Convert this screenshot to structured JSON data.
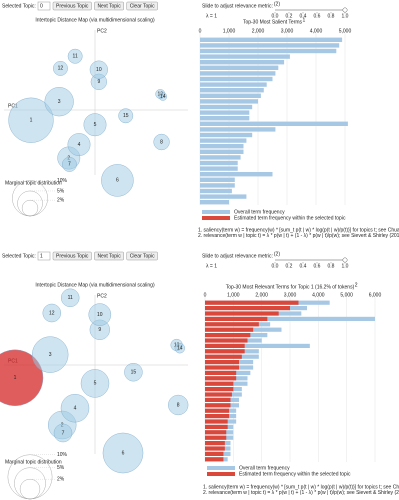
{
  "panels": [
    {
      "controls": {
        "selected_label": "Selected Topic:",
        "selected_value": "0",
        "buttons": [
          "Previous Topic",
          "Next Topic",
          "Clear Topic"
        ],
        "slider_label": "Slide to adjust relevance metric:",
        "slider_note": "(2)",
        "slider_ticks": [
          {
            "value": 0,
            "label": "0.0"
          },
          {
            "value": 0.2,
            "label": "0.2"
          },
          {
            "value": 0.4,
            "label": "0.4"
          },
          {
            "value": 0.6,
            "label": "0.6"
          },
          {
            "value": 0.8,
            "label": "0.8"
          },
          {
            "value": 1,
            "label": "1.0"
          }
        ],
        "lambda": {
          "value": 1,
          "label": "λ = 1"
        }
      },
      "map": {
        "title": "Intertopic Distance Map (via multidimensional scaling)",
        "axis_top": "PC2",
        "axis_left": "PC1",
        "topics": [
          {
            "label": "1",
            "pc1": -1.0,
            "pc2": -0.16,
            "size": 16
          },
          {
            "label": "2",
            "pc1": -0.41,
            "pc2": -0.75,
            "size": 4
          },
          {
            "label": "3",
            "pc1": -0.56,
            "pc2": 0.13,
            "size": 6.6
          },
          {
            "label": "4",
            "pc1": -0.25,
            "pc2": -0.54,
            "size": 4
          },
          {
            "label": "5",
            "pc1": 0.0,
            "pc2": -0.23,
            "size": 4
          },
          {
            "label": "6",
            "pc1": 0.35,
            "pc2": -1.1,
            "size": 8.2
          },
          {
            "label": "7",
            "pc1": -0.4,
            "pc2": -0.85,
            "size": 1.65
          },
          {
            "label": "8",
            "pc1": 1.04,
            "pc2": -0.5,
            "size": 2
          },
          {
            "label": "9",
            "pc1": 0.06,
            "pc2": 0.44,
            "size": 2
          },
          {
            "label": "10",
            "pc1": 0.06,
            "pc2": 0.63,
            "size": 2.5
          },
          {
            "label": "11",
            "pc1": -0.31,
            "pc2": 0.84,
            "size": 1.65
          },
          {
            "label": "12",
            "pc1": -0.54,
            "pc2": 0.65,
            "size": 1.65
          },
          {
            "label": "13",
            "pc1": 1.02,
            "pc2": 0.25,
            "size": 0.7
          },
          {
            "label": "14",
            "pc1": 1.06,
            "pc2": 0.21,
            "size": 0.5
          },
          {
            "label": "15",
            "pc1": 0.48,
            "pc2": -0.09,
            "size": 1.65
          }
        ],
        "legend_title": "Marginal topic distribution",
        "legend_sizes": [
          {
            "value": 2,
            "label": "2%"
          },
          {
            "value": 5,
            "label": "5%"
          },
          {
            "value": 10,
            "label": "10%"
          }
        ]
      },
      "bars": {
        "title": "Top-30 Most Salient Terms",
        "title_note": "1",
        "xlim": [
          0,
          5000
        ],
        "xticks": [
          {
            "value": 0,
            "label": "0"
          },
          {
            "value": 1000,
            "label": "1,000"
          },
          {
            "value": 2000,
            "label": "2,000"
          },
          {
            "value": 3000,
            "label": "3,000"
          },
          {
            "value": 4000,
            "label": "4,000"
          },
          {
            "value": 5000,
            "label": "5,000"
          }
        ],
        "overall": [
          4900,
          4800,
          4700,
          3100,
          2900,
          2700,
          2600,
          2500,
          2300,
          2200,
          2100,
          2000,
          1800,
          1700,
          1700,
          5100,
          2600,
          1800,
          1600,
          1500,
          1500,
          1400,
          1300,
          1300,
          2500,
          1200,
          1200,
          1100,
          1600,
          1000
        ],
        "topic": [],
        "legend": [
          "Overall term frequency",
          "Estimated term frequency within the selected topic"
        ],
        "footnotes": [
          "1. saliency(term w) = frequency(w) * [sum_t p(t | w) * log(p(t | w)/p(t))] for topics t; see Chuang et. al (2012)",
          "2. relevance(term w | topic t) = λ * p(w | t) + (1 - λ) * p(w | t)/p(w); see Sievert & Shirley (2014)"
        ]
      }
    },
    {
      "controls": {
        "selected_label": "Selected Topic:",
        "selected_value": "1",
        "buttons": [
          "Previous Topic",
          "Next Topic",
          "Clear Topic"
        ],
        "slider_label": "Slide to adjust relevance metric:",
        "slider_note": "(2)",
        "slider_ticks": [
          {
            "value": 0,
            "label": "0.0"
          },
          {
            "value": 0.2,
            "label": "0.2"
          },
          {
            "value": 0.4,
            "label": "0.4"
          },
          {
            "value": 0.6,
            "label": "0.6"
          },
          {
            "value": 0.8,
            "label": "0.8"
          },
          {
            "value": 1,
            "label": "1.0"
          }
        ],
        "lambda": {
          "value": 1,
          "label": "λ = 1"
        }
      },
      "map": {
        "title": "Intertopic Distance Map (via multidimensional scaling)",
        "axis_top": "PC2",
        "axis_left": "PC1",
        "topics": [
          {
            "label": "1",
            "pc1": -1.0,
            "pc2": -0.16,
            "size": 16
          },
          {
            "label": "2",
            "pc1": -0.41,
            "pc2": -0.75,
            "size": 4
          },
          {
            "label": "3",
            "pc1": -0.56,
            "pc2": 0.13,
            "size": 6.6
          },
          {
            "label": "4",
            "pc1": -0.25,
            "pc2": -0.54,
            "size": 4
          },
          {
            "label": "5",
            "pc1": 0.0,
            "pc2": -0.23,
            "size": 4
          },
          {
            "label": "6",
            "pc1": 0.35,
            "pc2": -1.1,
            "size": 8.2
          },
          {
            "label": "7",
            "pc1": -0.4,
            "pc2": -0.85,
            "size": 1.65
          },
          {
            "label": "8",
            "pc1": 1.04,
            "pc2": -0.5,
            "size": 2
          },
          {
            "label": "9",
            "pc1": 0.06,
            "pc2": 0.44,
            "size": 2
          },
          {
            "label": "10",
            "pc1": 0.06,
            "pc2": 0.63,
            "size": 2.5
          },
          {
            "label": "11",
            "pc1": -0.31,
            "pc2": 0.84,
            "size": 1.65
          },
          {
            "label": "12",
            "pc1": -0.54,
            "pc2": 0.65,
            "size": 1.65
          },
          {
            "label": "13",
            "pc1": 1.02,
            "pc2": 0.25,
            "size": 0.7
          },
          {
            "label": "14",
            "pc1": 1.06,
            "pc2": 0.21,
            "size": 0.5
          },
          {
            "label": "15",
            "pc1": 0.48,
            "pc2": -0.09,
            "size": 1.65
          }
        ],
        "legend_title": "Marginal topic distribution",
        "legend_sizes": [
          {
            "value": 2,
            "label": "2%"
          },
          {
            "value": 5,
            "label": "5%"
          },
          {
            "value": 10,
            "label": "10%"
          }
        ]
      },
      "bars": {
        "title": "Top-30 Most Relevant Terms for Topic 1 (16.2% of tokens)",
        "title_note": "2",
        "xlim": [
          0,
          6000
        ],
        "xticks": [
          {
            "value": 0,
            "label": "0"
          },
          {
            "value": 1000,
            "label": "1,000"
          },
          {
            "value": 2000,
            "label": "2,000"
          },
          {
            "value": 3000,
            "label": "3,000"
          },
          {
            "value": 4000,
            "label": "4,000"
          },
          {
            "value": 5000,
            "label": "5,000"
          },
          {
            "value": 6000,
            "label": "6,000"
          }
        ],
        "overall": [
          4400,
          3600,
          3400,
          6000,
          2300,
          2700,
          2200,
          2000,
          3700,
          1900,
          1900,
          1700,
          1700,
          1600,
          1500,
          1500,
          1300,
          1300,
          1200,
          1200,
          1100,
          1100,
          1100,
          1000,
          1000,
          1000,
          900,
          900,
          900,
          800
        ],
        "topic": [
          3300,
          3000,
          2600,
          2200,
          1900,
          1700,
          1600,
          1500,
          1400,
          1400,
          1300,
          1200,
          1200,
          1100,
          1100,
          1000,
          1000,
          950,
          900,
          900,
          850,
          850,
          800,
          800,
          750,
          750,
          700,
          700,
          650,
          650
        ],
        "legend": [
          "Overall term frequency",
          "Estimated term frequency within the selected topic"
        ],
        "footnotes": [
          "1. saliency(term w) = frequency(w) * [sum_t p(t | w) * log(p(t | w)/p(t))] for topics t; see Chuang et. al (2012)",
          "2. relevance(term w | topic t) = λ * p(w | t) + (1 - λ) * p(w | t)/p(w); see Sievert & Shirley (2014)"
        ]
      }
    }
  ],
  "colors": {
    "topic": "#9ecae1",
    "selected": "#d62728",
    "overall": "#a6c8e4",
    "estimated": "#d9483b"
  }
}
